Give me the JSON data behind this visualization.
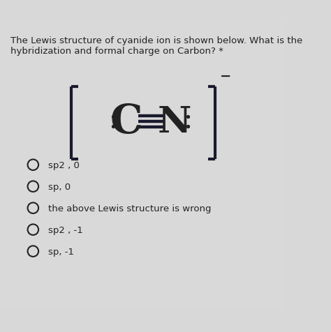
{
  "background_color": "#d8d8d8",
  "content_bg": "#e8e8e8",
  "title_text": "The Lewis structure of cyanide ion is shown below. What is the\nhybridization and formal charge on Carbon? *",
  "title_fontsize": 9.5,
  "bracket_color": "#1a1a2e",
  "superscript_text": "−",
  "options": [
    "sp2 , 0",
    "sp, 0",
    "the above Lewis structure is wrong",
    "sp2 , -1",
    "sp, -1"
  ],
  "option_fontsize": 9.5,
  "text_color": "#222222",
  "dot_color": "#222222",
  "bond_color": "#1a1a2e",
  "C_fontsize": 42,
  "N_fontsize": 38
}
